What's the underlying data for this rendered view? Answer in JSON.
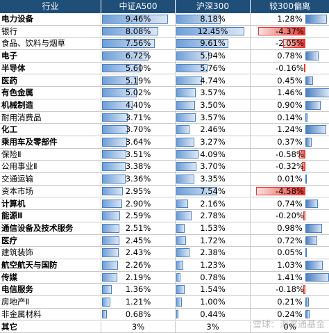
{
  "header": {
    "col_industry": "行业",
    "col_a500": "中证A500",
    "col_hs300": "沪深300",
    "col_diff": "较300偏离"
  },
  "rows": [
    {
      "name": "电力设备",
      "bold": true,
      "a500": "9.46%",
      "hs300": "8.18%",
      "diff": "1.28%",
      "a500_val": 9.46,
      "hs300_val": 8.18,
      "diff_val": 1.28
    },
    {
      "name": "银行",
      "bold": false,
      "a500": "8.08%",
      "hs300": "12.45%",
      "diff": "-4.37%",
      "a500_val": 8.08,
      "hs300_val": 12.45,
      "diff_val": -4.37
    },
    {
      "name": "食品、饮料与烟草",
      "bold": false,
      "a500": "7.56%",
      "hs300": "9.61%",
      "diff": "-2.05%",
      "a500_val": 7.56,
      "hs300_val": 9.61,
      "diff_val": -2.05
    },
    {
      "name": "电子",
      "bold": true,
      "a500": "6.72%",
      "hs300": "5.94%",
      "diff": "0.78%",
      "a500_val": 6.72,
      "hs300_val": 5.94,
      "diff_val": 0.78
    },
    {
      "name": "半导体",
      "bold": true,
      "a500": "5.60%",
      "hs300": "5.76%",
      "diff": "-0.16%",
      "a500_val": 5.6,
      "hs300_val": 5.76,
      "diff_val": -0.16
    },
    {
      "name": "医药",
      "bold": true,
      "a500": "5.19%",
      "hs300": "4.74%",
      "diff": "0.45%",
      "a500_val": 5.19,
      "hs300_val": 4.74,
      "diff_val": 0.45
    },
    {
      "name": "有色金属",
      "bold": true,
      "a500": "5.02%",
      "hs300": "3.57%",
      "diff": "1.46%",
      "a500_val": 5.02,
      "hs300_val": 3.57,
      "diff_val": 1.46
    },
    {
      "name": "机械制造",
      "bold": true,
      "a500": "4.40%",
      "hs300": "3.50%",
      "diff": "0.90%",
      "a500_val": 4.4,
      "hs300_val": 3.5,
      "diff_val": 0.9
    },
    {
      "name": "耐用消费品",
      "bold": false,
      "a500": "3.71%",
      "hs300": "3.57%",
      "diff": "0.14%",
      "a500_val": 3.71,
      "hs300_val": 3.57,
      "diff_val": 0.14
    },
    {
      "name": "化工",
      "bold": true,
      "a500": "3.70%",
      "hs300": "2.46%",
      "diff": "1.24%",
      "a500_val": 3.7,
      "hs300_val": 2.46,
      "diff_val": 1.24
    },
    {
      "name": "乘用车及零部件",
      "bold": true,
      "a500": "3.64%",
      "hs300": "3.27%",
      "diff": "0.37%",
      "a500_val": 3.64,
      "hs300_val": 3.27,
      "diff_val": 0.37
    },
    {
      "name": "保险Ⅱ",
      "bold": false,
      "a500": "3.51%",
      "hs300": "4.09%",
      "diff": "-0.58%",
      "a500_val": 3.51,
      "hs300_val": 4.09,
      "diff_val": -0.58
    },
    {
      "name": "公用事业Ⅱ",
      "bold": false,
      "a500": "3.38%",
      "hs300": "3.70%",
      "diff": "-0.32%",
      "a500_val": 3.38,
      "hs300_val": 3.7,
      "diff_val": -0.32
    },
    {
      "name": "交通运输",
      "bold": false,
      "a500": "3.36%",
      "hs300": "3.35%",
      "diff": "0.01%",
      "a500_val": 3.36,
      "hs300_val": 3.35,
      "diff_val": 0.01
    },
    {
      "name": "资本市场",
      "bold": false,
      "a500": "2.95%",
      "hs300": "7.54%",
      "diff": "-4.58%",
      "a500_val": 2.95,
      "hs300_val": 7.54,
      "diff_val": -4.58
    },
    {
      "name": "计算机",
      "bold": true,
      "a500": "2.90%",
      "hs300": "2.16%",
      "diff": "0.74%",
      "a500_val": 2.9,
      "hs300_val": 2.16,
      "diff_val": 0.74
    },
    {
      "name": "能源Ⅱ",
      "bold": true,
      "a500": "2.59%",
      "hs300": "2.78%",
      "diff": "-0.20%",
      "a500_val": 2.59,
      "hs300_val": 2.78,
      "diff_val": -0.2
    },
    {
      "name": "通信设备及技术服务",
      "bold": true,
      "a500": "2.51%",
      "hs300": "1.53%",
      "diff": "0.98%",
      "a500_val": 2.51,
      "hs300_val": 1.53,
      "diff_val": 0.98
    },
    {
      "name": "医疗",
      "bold": true,
      "a500": "2.45%",
      "hs300": "1.72%",
      "diff": "0.72%",
      "a500_val": 2.45,
      "hs300_val": 1.72,
      "diff_val": 0.72
    },
    {
      "name": "建筑装饰",
      "bold": false,
      "a500": "2.43%",
      "hs300": "2.38%",
      "diff": "0.05%",
      "a500_val": 2.43,
      "hs300_val": 2.38,
      "diff_val": 0.05
    },
    {
      "name": "航空航天与国防",
      "bold": true,
      "a500": "2.26%",
      "hs300": "1.23%",
      "diff": "1.03%",
      "a500_val": 2.26,
      "hs300_val": 1.23,
      "diff_val": 1.03
    },
    {
      "name": "传媒",
      "bold": true,
      "a500": "2.19%",
      "hs300": "0.78%",
      "diff": "1.41%",
      "a500_val": 2.19,
      "hs300_val": 0.78,
      "diff_val": 1.41
    },
    {
      "name": "电信服务",
      "bold": true,
      "a500": "1.36%",
      "hs300": "1.54%",
      "diff": "-0.18%",
      "a500_val": 1.36,
      "hs300_val": 1.54,
      "diff_val": -0.18
    },
    {
      "name": "房地产Ⅱ",
      "bold": false,
      "a500": "1.21%",
      "hs300": "1.00%",
      "diff": "0.21%",
      "a500_val": 1.21,
      "hs300_val": 1.0,
      "diff_val": 0.21
    },
    {
      "name": "非金属材料",
      "bold": false,
      "a500": "0.68%",
      "hs300": "0.44%",
      "diff": "0.24%",
      "a500_val": 0.68,
      "hs300_val": 0.44,
      "diff_val": 0.24
    },
    {
      "name": "其它",
      "bold": true,
      "a500": "3%",
      "hs300": "3%",
      "diff": "0%",
      "a500_val": null,
      "hs300_val": null,
      "diff_val": null
    }
  ],
  "watermark": "雪球：海富通基金",
  "colors": {
    "header_bg": "#1f4e79",
    "bar_blue": "#4a7fc1",
    "bar_red": "#e8372f"
  }
}
